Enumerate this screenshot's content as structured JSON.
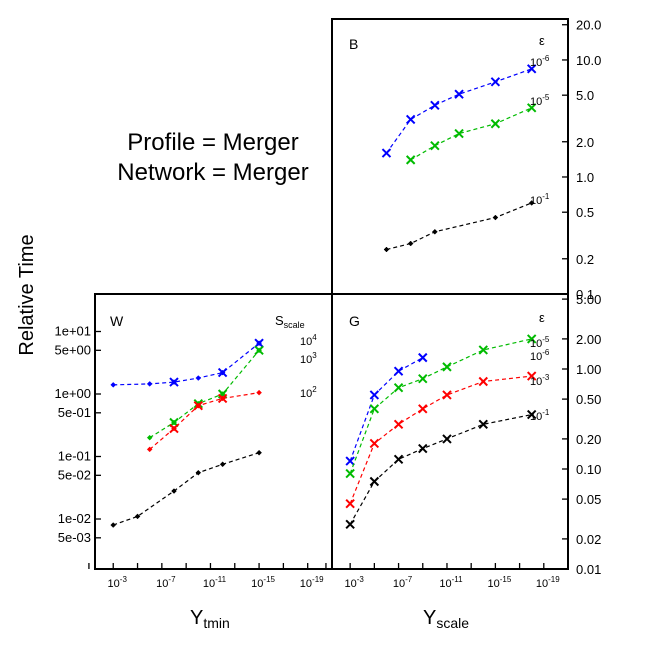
{
  "chart_data": {
    "type": "line",
    "title_lines": [
      "Profile = Merger",
      "Network = Merger"
    ],
    "ylabel": "Relative Time",
    "x_tick_labels": [
      "10^-3",
      "10^-7",
      "10^-11",
      "10^-15",
      "10^-19"
    ],
    "x_tick_values": [
      -3,
      -7,
      -11,
      -15,
      -19
    ],
    "panels": [
      {
        "id": "W",
        "label": "W",
        "xlabel": "Y",
        "xlabel_sub": "tmin",
        "xlim": [
          -1.5,
          -21
        ],
        "ylim_log10": [
          -2.8,
          1.6
        ],
        "y_tick_labels": [
          "1e+01",
          "5e+00",
          "1e+00",
          "5e-01",
          "1e-01",
          "5e-02",
          "1e-02",
          "5e-03"
        ],
        "y_tick_values": [
          10,
          5,
          1,
          0.5,
          0.1,
          0.05,
          0.01,
          0.005
        ],
        "legend_title": "S",
        "legend_title_sub": "scale",
        "series": [
          {
            "name": "10^4",
            "color": "#0000ff",
            "marker": "diamond",
            "x": [
              -3,
              -6,
              -8,
              -10,
              -12,
              -15
            ],
            "y": [
              1.4,
              1.45,
              1.55,
              1.8,
              2.2,
              6.5
            ]
          },
          {
            "name": "10^4",
            "color": "#0000ff",
            "marker": "cross",
            "x": [
              -8,
              -12,
              -15
            ],
            "y": [
              1.55,
              2.2,
              6.5
            ]
          },
          {
            "name": "10^3",
            "color": "#00bb00",
            "marker": "diamond",
            "x": [
              -6,
              -8,
              -10,
              -12,
              -15
            ],
            "y": [
              0.2,
              0.35,
              0.7,
              1.0,
              5.0
            ]
          },
          {
            "name": "10^3",
            "color": "#00bb00",
            "marker": "cross",
            "x": [
              -8,
              -10,
              -12,
              -15
            ],
            "y": [
              0.35,
              0.7,
              1.0,
              5.0
            ]
          },
          {
            "name": "10^2",
            "color": "#ff0000",
            "marker": "diamond",
            "x": [
              -6,
              -8,
              -10,
              -12,
              -15
            ],
            "y": [
              0.13,
              0.28,
              0.65,
              0.85,
              1.05
            ]
          },
          {
            "name": "10^2",
            "color": "#ff0000",
            "marker": "cross",
            "x": [
              -8,
              -10,
              -12
            ],
            "y": [
              0.28,
              0.65,
              0.85
            ]
          },
          {
            "name": "",
            "color": "#000000",
            "marker": "diamond",
            "x": [
              -3,
              -5,
              -8,
              -10,
              -12,
              -15
            ],
            "y": [
              0.008,
              0.011,
              0.028,
              0.055,
              0.075,
              0.115
            ]
          }
        ],
        "annotations": [
          {
            "base": "10",
            "exp": "4",
            "color": "#0000ff"
          },
          {
            "base": "10",
            "exp": "3",
            "color": "#00bb00"
          },
          {
            "base": "10",
            "exp": "2",
            "color": "#ff0000"
          }
        ]
      },
      {
        "id": "B",
        "label": "B",
        "xlim": [
          -1.5,
          -21
        ],
        "ylim_log10": [
          -1,
          1.35
        ],
        "y_tick_labels": [
          "20.0",
          "10.0",
          "5.0",
          "2.0",
          "1.0",
          "0.5",
          "0.2",
          "0.1"
        ],
        "y_tick_values": [
          20,
          10,
          5,
          2,
          1,
          0.5,
          0.2,
          0.1
        ],
        "legend_title": "ε",
        "series": [
          {
            "name": "10^-6",
            "color": "#0000ff",
            "marker": "cross",
            "x": [
              -6,
              -8,
              -10,
              -12,
              -15,
              -18
            ],
            "y": [
              1.6,
              3.1,
              4.1,
              5.1,
              6.5,
              8.4
            ]
          },
          {
            "name": "10^-5",
            "color": "#00bb00",
            "marker": "cross",
            "x": [
              -8,
              -10,
              -12,
              -15,
              -18
            ],
            "y": [
              1.4,
              1.85,
              2.35,
              2.85,
              3.9
            ]
          },
          {
            "name": "10^-1",
            "color": "#000000",
            "marker": "diamond",
            "x": [
              -6,
              -8,
              -10,
              -15,
              -18
            ],
            "y": [
              0.24,
              0.27,
              0.34,
              0.45,
              0.6
            ]
          }
        ],
        "annotations": [
          {
            "base": "10",
            "exp": "-6",
            "color": "#0000ff"
          },
          {
            "base": "10",
            "exp": "-5",
            "color": "#00bb00"
          },
          {
            "base": "10",
            "exp": "-1",
            "color": "#000000"
          }
        ]
      },
      {
        "id": "G",
        "label": "G",
        "xlabel": "Y",
        "xlabel_sub": "scale",
        "xlim": [
          -1.5,
          -21
        ],
        "ylim_log10": [
          -2,
          0.75
        ],
        "y_tick_labels": [
          "5.00",
          "2.00",
          "1.00",
          "0.50",
          "0.20",
          "0.10",
          "0.05",
          "0.02",
          "0.01"
        ],
        "y_tick_values": [
          5,
          2,
          1,
          0.5,
          0.2,
          0.1,
          0.05,
          0.02,
          0.01
        ],
        "legend_title": "ε",
        "series": [
          {
            "name": "10^-6",
            "color": "#0000ff",
            "marker": "cross",
            "x": [
              -3,
              -5,
              -7,
              -9
            ],
            "y": [
              0.12,
              0.55,
              0.95,
              1.3
            ]
          },
          {
            "name": "10^-5",
            "color": "#00bb00",
            "marker": "cross",
            "x": [
              -3,
              -5,
              -7,
              -9,
              -11,
              -14,
              -18
            ],
            "y": [
              0.09,
              0.4,
              0.65,
              0.8,
              1.05,
              1.55,
              2.0
            ]
          },
          {
            "name": "10^-3",
            "color": "#ff0000",
            "marker": "cross",
            "x": [
              -3,
              -5,
              -7,
              -9,
              -11,
              -14,
              -18
            ],
            "y": [
              0.045,
              0.18,
              0.28,
              0.4,
              0.55,
              0.75,
              0.85
            ]
          },
          {
            "name": "10^-1",
            "color": "#000000",
            "marker": "cross",
            "x": [
              -3,
              -5,
              -7,
              -9,
              -11,
              -14,
              -18
            ],
            "y": [
              0.028,
              0.075,
              0.125,
              0.16,
              0.2,
              0.28,
              0.35
            ]
          }
        ],
        "annotations": [
          {
            "base": "10",
            "exp": "-5",
            "color": "#00bb00"
          },
          {
            "base": "10",
            "exp": "-6",
            "color": "#0000ff"
          },
          {
            "base": "10",
            "exp": "-3",
            "color": "#ff0000"
          },
          {
            "base": "10",
            "exp": "-1",
            "color": "#000000"
          }
        ]
      }
    ]
  }
}
